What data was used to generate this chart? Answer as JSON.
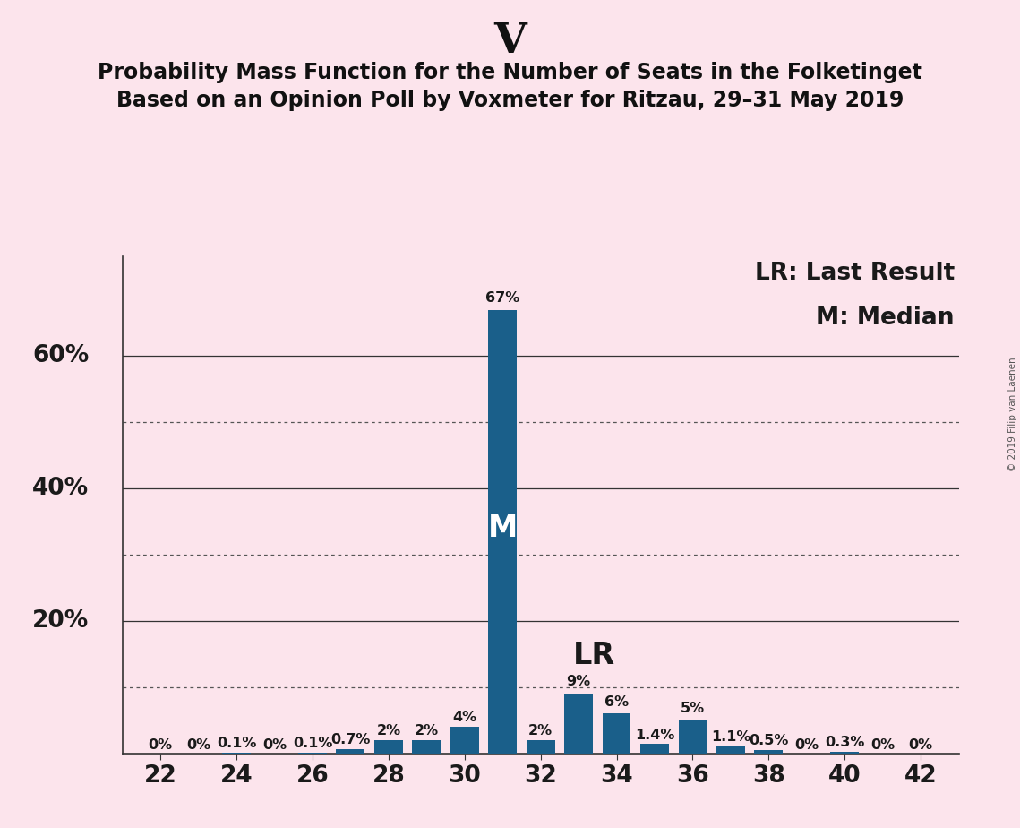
{
  "title": "V",
  "subtitle1": "Probability Mass Function for the Number of Seats in the Folketinget",
  "subtitle2": "Based on an Opinion Poll by Voxmeter for Ritzau, 29–31 May 2019",
  "copyright": "© 2019 Filip van Laenen",
  "seats": [
    22,
    23,
    24,
    25,
    26,
    27,
    28,
    29,
    30,
    31,
    32,
    33,
    34,
    35,
    36,
    37,
    38,
    39,
    40,
    41,
    42
  ],
  "probabilities": [
    0.0,
    0.0,
    0.1,
    0.0,
    0.1,
    0.7,
    2.0,
    2.0,
    4.0,
    67.0,
    2.0,
    9.0,
    6.0,
    1.4,
    5.0,
    1.1,
    0.5,
    0.0,
    0.3,
    0.0,
    0.0
  ],
  "bar_labels": [
    "0%",
    "0%",
    "0.1%",
    "0%",
    "0.1%",
    "0.7%",
    "2%",
    "2%",
    "4%",
    "67%",
    "2%",
    "9%",
    "6%",
    "1.4%",
    "5%",
    "1.1%",
    "0.5%",
    "0%",
    "0.3%",
    "0%",
    "0%"
  ],
  "bar_color": "#1a5f8a",
  "background_color": "#fce4ec",
  "median_seat": 31,
  "lr_seat": 33,
  "legend_text1": "LR: Last Result",
  "legend_text2": "M: Median",
  "xlim": [
    21.0,
    43.0
  ],
  "ylim": [
    0,
    75
  ],
  "xticks": [
    22,
    24,
    26,
    28,
    30,
    32,
    34,
    36,
    38,
    40,
    42
  ],
  "solid_gridlines": [
    20.0,
    40.0,
    60.0
  ],
  "dotted_gridlines": [
    10.0,
    30.0,
    50.0
  ],
  "title_fontsize": 34,
  "subtitle_fontsize": 17,
  "bar_label_fontsize": 11.5,
  "axis_tick_fontsize": 19,
  "ylabel_fontsize": 19,
  "annotation_fontsize": 24,
  "legend_fontsize": 19
}
